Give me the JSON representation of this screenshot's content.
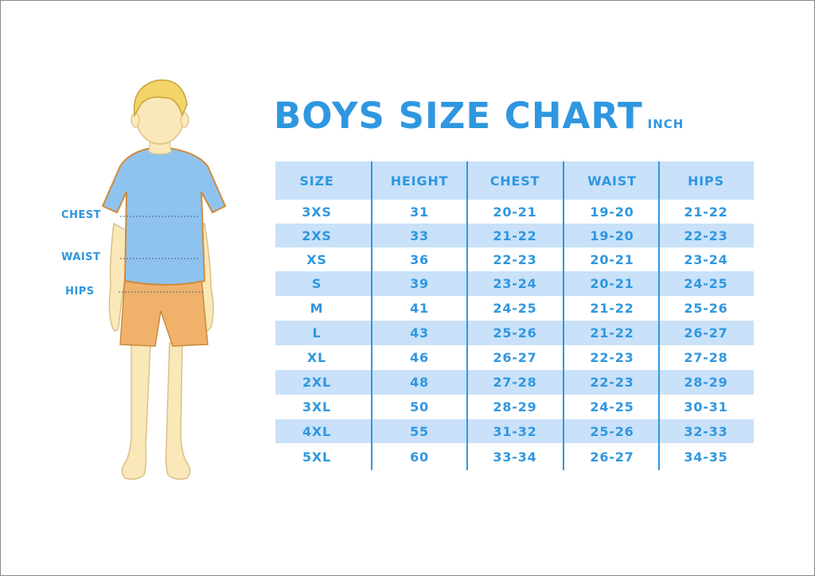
{
  "title": "BOYS SIZE CHART",
  "unit": "INCH",
  "measure_labels": {
    "chest": "CHEST",
    "waist": "WAIST",
    "hips": "HIPS"
  },
  "colors": {
    "accent": "#2f97e0",
    "band": "#c9e1f9",
    "shirt": "#8ec3ef",
    "shorts": "#f0b26a",
    "skin": "#fbe8b8",
    "hair": "#f2d468"
  },
  "table": {
    "headers": [
      "SIZE",
      "HEIGHT",
      "CHEST",
      "WAIST",
      "HIPS"
    ],
    "rows": [
      [
        "3XS",
        "31",
        "20-21",
        "19-20",
        "21-22"
      ],
      [
        "2XS",
        "33",
        "21-22",
        "19-20",
        "22-23"
      ],
      [
        "XS",
        "36",
        "22-23",
        "20-21",
        "23-24"
      ],
      [
        "S",
        "39",
        "23-24",
        "20-21",
        "24-25"
      ],
      [
        "M",
        "41",
        "24-25",
        "21-22",
        "25-26"
      ],
      [
        "L",
        "43",
        "25-26",
        "21-22",
        "26-27"
      ],
      [
        "XL",
        "46",
        "26-27",
        "22-23",
        "27-28"
      ],
      [
        "2XL",
        "48",
        "27-28",
        "22-23",
        "28-29"
      ],
      [
        "3XL",
        "50",
        "28-29",
        "24-25",
        "30-31"
      ],
      [
        "4XL",
        "55",
        "31-32",
        "25-26",
        "32-33"
      ],
      [
        "5XL",
        "60",
        "33-34",
        "26-27",
        "34-35"
      ]
    ]
  }
}
